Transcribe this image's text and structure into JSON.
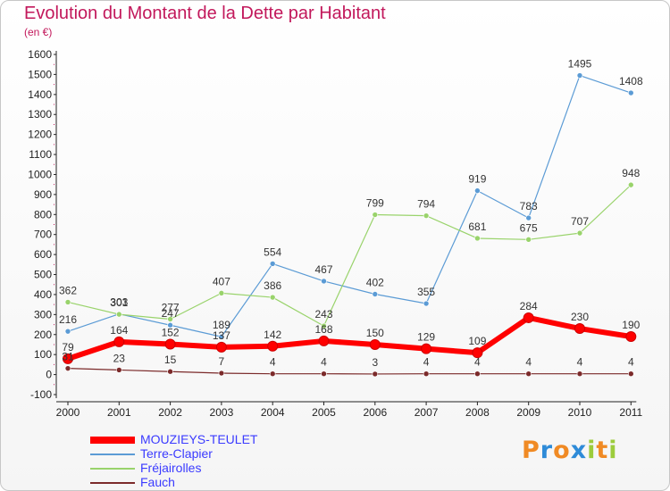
{
  "title": "Evolution du Montant de la Dette par Habitant",
  "subtitle": "(en €)",
  "logo": {
    "text": "Proxiti",
    "letter_colors": [
      "#f08a24",
      "#2e8bd8",
      "#f08a24",
      "#2e8bd8",
      "#9ccc3c",
      "#f08a24",
      "#9ccc3c"
    ]
  },
  "chart_data": {
    "type": "line",
    "x": [
      "2000",
      "2001",
      "2002",
      "2003",
      "2004",
      "2005",
      "2006",
      "2007",
      "2008",
      "2009",
      "2010",
      "2011"
    ],
    "ylim": [
      -100,
      1600
    ],
    "yticks": [
      "-100",
      "0",
      "100",
      "200",
      "300",
      "400",
      "500",
      "600",
      "700",
      "800",
      "900",
      "1000",
      "1100",
      "1200",
      "1300",
      "1400",
      "1500",
      "1600"
    ],
    "grid": false,
    "legend_position": "bottom-left",
    "series": [
      {
        "name": "MOUZIEYS-TEULET",
        "color": "#ff0000",
        "values": [
          79,
          164,
          152,
          137,
          142,
          168,
          150,
          129,
          109,
          284,
          230,
          190
        ],
        "labels": [
          "79",
          "164",
          "152",
          "137",
          "142",
          "168",
          "150",
          "129",
          "109",
          "284",
          "230",
          "190"
        ]
      },
      {
        "name": "Terre-Clapier",
        "color": "#5b9bd5",
        "values": [
          216,
          303,
          247,
          189,
          554,
          467,
          402,
          355,
          919,
          783,
          1495,
          1408
        ],
        "labels": [
          "216",
          "303",
          "247",
          "189",
          "554",
          "467",
          "402",
          "355",
          "919",
          "783",
          "1495",
          "1408"
        ]
      },
      {
        "name": "Fréjairolles",
        "color": "#99d36b",
        "values": [
          362,
          301,
          277,
          407,
          386,
          243,
          799,
          794,
          681,
          675,
          707,
          948
        ],
        "labels": [
          "362",
          "301",
          "277",
          "407",
          "386",
          "243",
          "799",
          "794",
          "681",
          "675",
          "707",
          "948"
        ]
      },
      {
        "name": "Fauch",
        "color": "#7b2a2a",
        "values": [
          31,
          23,
          15,
          7,
          4,
          4,
          3,
          4,
          4,
          4,
          4,
          4
        ],
        "labels": [
          "31",
          "23",
          "15",
          "7",
          "4",
          "4",
          "3",
          "4",
          "4",
          "4",
          "4",
          "4"
        ]
      }
    ]
  }
}
